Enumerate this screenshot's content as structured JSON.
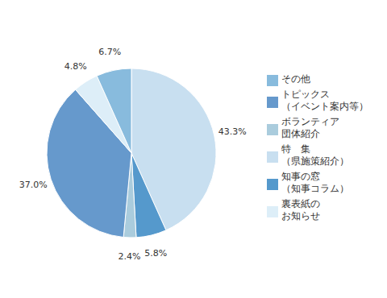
{
  "chart_data": {
    "type": "pie",
    "categories": [
      "特　集\n（県施策紹介）",
      "知事の窓\n（知事コラム）",
      "ボランティア\n団体紹介",
      "トピックス\n（イベント案内等）",
      "裏表紙の\nお知らせ",
      "その他"
    ],
    "values": [
      43.3,
      5.8,
      2.4,
      37.0,
      4.8,
      6.7
    ],
    "value_labels": [
      "43.3%",
      "5.8%",
      "2.4%",
      "37.0%",
      "4.8%",
      "6.7%"
    ],
    "colors": [
      "#c8dff0",
      "#5599cc",
      "#aaccdd",
      "#6699cc",
      "#ddeef8",
      "#88bbdd"
    ],
    "data_labels": true,
    "legend": "right"
  }
}
